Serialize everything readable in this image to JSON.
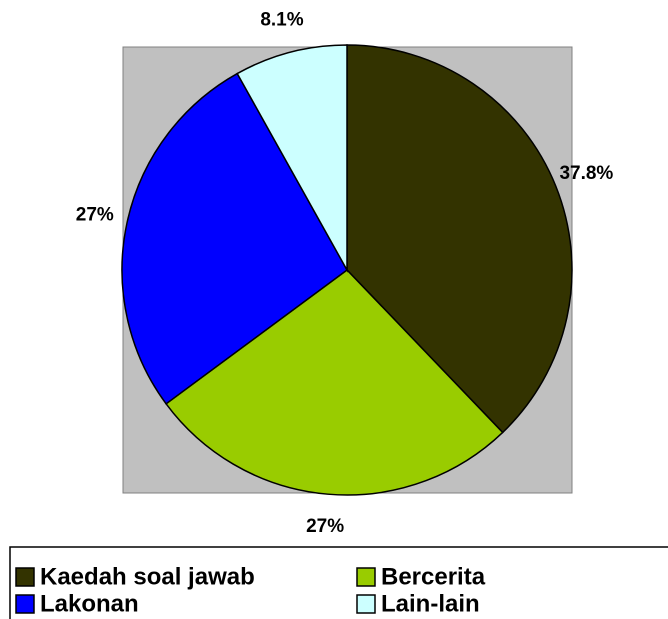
{
  "chart_data": {
    "type": "pie",
    "categories": [
      "Kaedah soal jawab",
      "Bercerita",
      "Lakonan",
      "Lain-lain"
    ],
    "values": [
      37.8,
      27,
      27,
      8.1
    ],
    "value_labels": [
      "37.8%",
      "27%",
      "27%",
      "8.1%"
    ],
    "colors": [
      "#333300",
      "#99cc00",
      "#0000ff",
      "#ccffff"
    ],
    "legend": "bottom"
  }
}
